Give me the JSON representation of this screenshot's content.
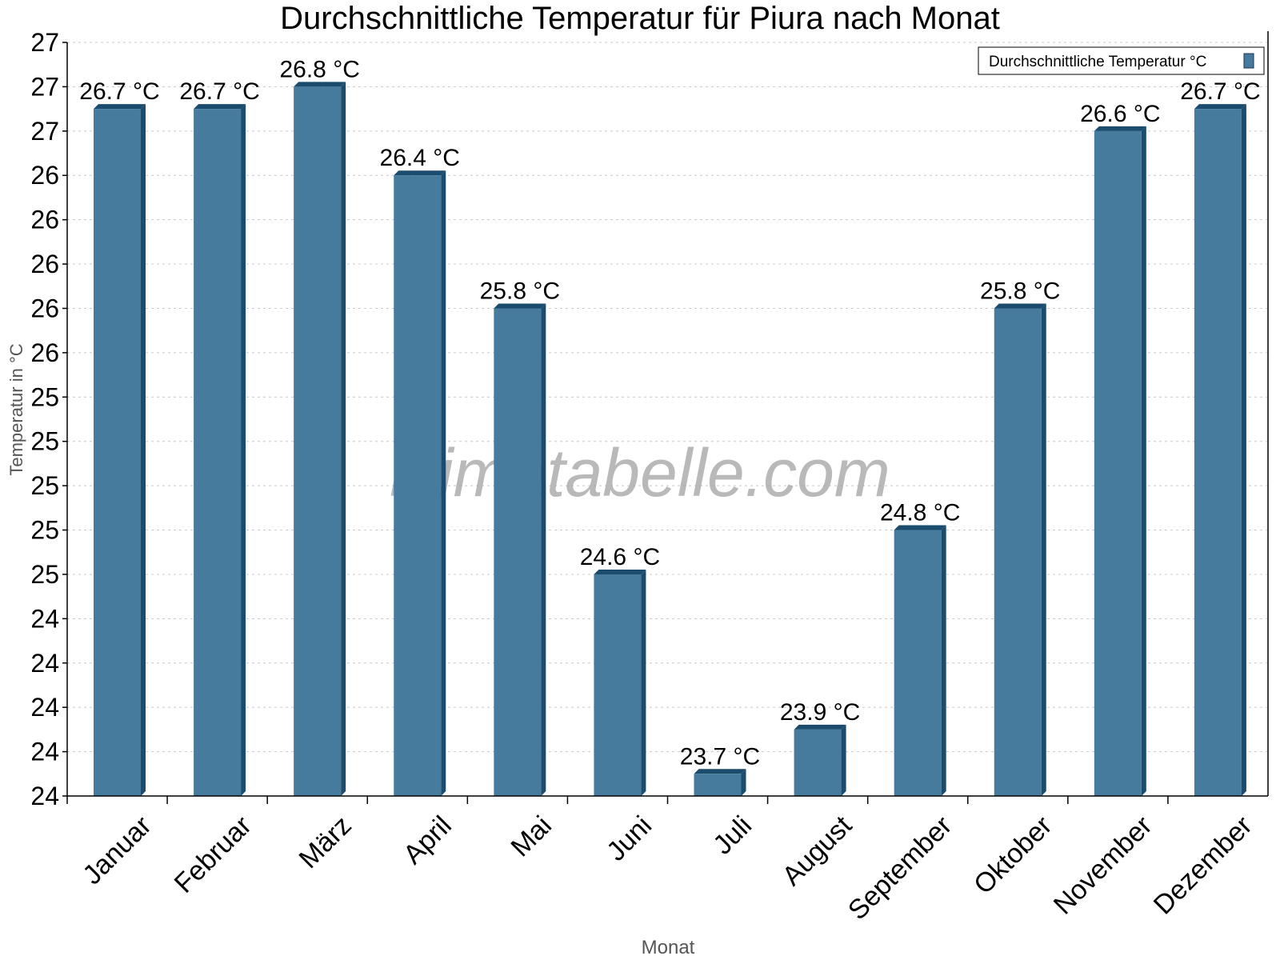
{
  "chart_data": {
    "type": "bar",
    "title": "Durchschnittliche Temperatur für Piura nach Monat",
    "xlabel": "Monat",
    "ylabel": "Temperatur in °C",
    "categories": [
      "Januar",
      "Februar",
      "März",
      "April",
      "Mai",
      "Juni",
      "Juli",
      "August",
      "September",
      "Oktober",
      "November",
      "Dezember"
    ],
    "series": [
      {
        "name": "Durchschnittliche Temperatur °C",
        "color": "#467b9d",
        "side_color": "#1b4c6d",
        "values": [
          26.7,
          26.7,
          26.8,
          26.4,
          25.8,
          24.6,
          23.7,
          23.9,
          24.8,
          25.8,
          26.6,
          26.7
        ]
      }
    ],
    "value_labels": [
      "26.7 °C",
      "26.7 °C",
      "26.8 °C",
      "26.4 °C",
      "25.8 °C",
      "24.6 °C",
      "23.7 °C",
      "23.9 °C",
      "24.8 °C",
      "25.8 °C",
      "26.6 °C",
      "26.7 °C"
    ],
    "ylim": [
      23.6,
      27.0
    ],
    "ytick_step": 0.2,
    "ytick_labels": [
      "24",
      "24",
      "24",
      "24",
      "24",
      "25",
      "25",
      "25",
      "25",
      "25",
      "26",
      "26",
      "26",
      "26",
      "26",
      "27",
      "27",
      "27"
    ],
    "grid": true,
    "legend": {
      "position": "top-right",
      "label": "Durchschnittliche Temperatur °C"
    },
    "watermark": "klimatabelle.com"
  }
}
